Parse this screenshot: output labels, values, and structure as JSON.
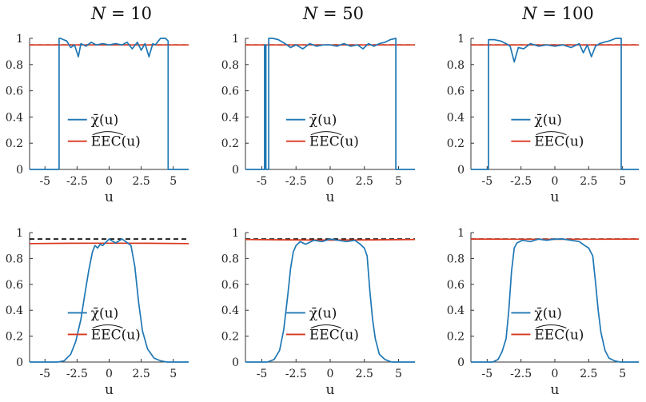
{
  "titles": [
    "N = 10",
    "N = 50",
    "N = 100"
  ],
  "colors": {
    "chi": "#1f77b4",
    "eec": "#d9381e",
    "nominal": "#000000"
  },
  "chart_data": [
    {
      "type": "line",
      "title": "N = 10",
      "row": 1,
      "xlabel": "u",
      "xlim": [
        -6.2,
        6.2
      ],
      "ylim": [
        0,
        1
      ],
      "xticks": [
        -5,
        -2.5,
        0,
        2.5,
        5
      ],
      "xticklabels": [
        "-5",
        "-2.5",
        "0",
        "2.5",
        "5"
      ],
      "yticks": [
        0,
        0.2,
        0.4,
        0.6,
        0.8,
        1
      ],
      "yticklabels": [
        "0",
        "0.2",
        "0.4",
        "0.6",
        "0.8",
        "1"
      ],
      "nominal": 0.95,
      "series": [
        {
          "name": "χ̄(u)",
          "x": [
            -6.2,
            -3.9,
            -3.9,
            -3.8,
            -3.8,
            -3.3,
            -3.0,
            -2.7,
            -2.4,
            -2.2,
            -1.8,
            -1.4,
            -1.0,
            -0.5,
            0,
            0.5,
            1.0,
            1.4,
            1.8,
            2.2,
            2.5,
            2.8,
            3.1,
            3.4,
            3.6,
            4.0,
            4.4,
            4.6,
            4.6,
            6.2
          ],
          "y": [
            0,
            0,
            1.0,
            1.0,
            1.0,
            0.98,
            0.93,
            0.95,
            0.86,
            0.96,
            0.94,
            0.97,
            0.95,
            0.96,
            0.95,
            0.96,
            0.95,
            0.97,
            0.92,
            0.97,
            0.91,
            0.96,
            0.86,
            0.96,
            0.95,
            1.0,
            1.0,
            0.98,
            0,
            0
          ]
        },
        {
          "name": "EEC(u)",
          "x": [
            -6.2,
            6.2
          ],
          "y": [
            0.95,
            0.95
          ]
        }
      ]
    },
    {
      "type": "line",
      "title": "N = 50",
      "row": 1,
      "xlabel": "u",
      "xlim": [
        -6.2,
        6.2
      ],
      "ylim": [
        0,
        1
      ],
      "xticks": [
        -5,
        -2.5,
        0,
        2.5,
        5
      ],
      "xticklabels": [
        "-5",
        "-2.5",
        "0",
        "2.5",
        "5"
      ],
      "yticks": [
        0,
        0.2,
        0.4,
        0.6,
        0.8,
        1
      ],
      "yticklabels": [
        "0",
        "0.2",
        "0.4",
        "0.6",
        "0.8",
        "1"
      ],
      "nominal": 0.95,
      "series": [
        {
          "name": "χ̄(u)",
          "x": [
            -6.2,
            -4.8,
            -4.8,
            -4.7,
            -4.7,
            -4.5,
            -4.5,
            -4.2,
            -3.8,
            -3.3,
            -2.9,
            -2.5,
            -2.0,
            -1.5,
            -1.0,
            -0.5,
            0,
            0.5,
            1.0,
            1.5,
            2.0,
            2.4,
            2.8,
            3.2,
            3.6,
            4.0,
            4.4,
            4.8,
            4.8,
            6.2
          ],
          "y": [
            0,
            0,
            0.95,
            0.95,
            0,
            0,
            1.0,
            1.0,
            0.99,
            0.96,
            0.93,
            0.95,
            0.92,
            0.96,
            0.94,
            0.95,
            0.95,
            0.94,
            0.96,
            0.94,
            0.95,
            0.92,
            0.96,
            0.94,
            0.96,
            0.97,
            0.99,
            1.0,
            0,
            0
          ]
        },
        {
          "name": "EEC(u)",
          "x": [
            -6.2,
            6.2
          ],
          "y": [
            0.95,
            0.95
          ]
        }
      ]
    },
    {
      "type": "line",
      "title": "N = 100",
      "row": 1,
      "xlabel": "u",
      "xlim": [
        -6.2,
        6.2
      ],
      "ylim": [
        0,
        1
      ],
      "xticks": [
        -5,
        -2.5,
        0,
        2.5,
        5
      ],
      "xticklabels": [
        "-5",
        "-2.5",
        "0",
        "2.5",
        "5"
      ],
      "yticks": [
        0,
        0.2,
        0.4,
        0.6,
        0.8,
        1
      ],
      "yticklabels": [
        "0",
        "0.2",
        "0.4",
        "0.6",
        "0.8",
        "1"
      ],
      "nominal": 0.95,
      "series": [
        {
          "name": "χ̄(u)",
          "x": [
            -6.2,
            -4.9,
            -4.9,
            -4.5,
            -4.0,
            -3.6,
            -3.3,
            -3.0,
            -2.7,
            -2.3,
            -1.8,
            -1.2,
            -0.6,
            0,
            0.6,
            1.2,
            1.8,
            2.1,
            2.4,
            2.7,
            3.0,
            3.3,
            3.6,
            4.0,
            4.5,
            4.9,
            4.9,
            6.2
          ],
          "y": [
            0,
            0,
            0.99,
            0.99,
            0.98,
            0.96,
            0.94,
            0.82,
            0.93,
            0.92,
            0.96,
            0.94,
            0.95,
            0.94,
            0.95,
            0.93,
            0.96,
            0.89,
            0.95,
            0.86,
            0.94,
            0.96,
            0.97,
            0.98,
            1.0,
            1.0,
            0,
            0
          ]
        },
        {
          "name": "EEC(u)",
          "x": [
            -6.2,
            6.2
          ],
          "y": [
            0.95,
            0.95
          ]
        }
      ]
    },
    {
      "type": "line",
      "title": "",
      "row": 2,
      "xlabel": "u",
      "xlim": [
        -6.2,
        6.2
      ],
      "ylim": [
        0,
        1
      ],
      "xticks": [
        -5,
        -2.5,
        0,
        2.5,
        5
      ],
      "xticklabels": [
        "-5",
        "-2.5",
        "0",
        "2.5",
        "5"
      ],
      "yticks": [
        0,
        0.2,
        0.4,
        0.6,
        0.8,
        1
      ],
      "yticklabels": [
        "0",
        "0.2",
        "0.4",
        "0.6",
        "0.8",
        "1"
      ],
      "nominal": 0.95,
      "series": [
        {
          "name": "χ̄(u)",
          "x": [
            -6.2,
            -4.0,
            -3.5,
            -3.0,
            -2.6,
            -2.2,
            -1.9,
            -1.6,
            -1.3,
            -1.1,
            -0.9,
            -0.7,
            -0.5,
            0,
            0.5,
            1.0,
            1.3,
            1.7,
            2.0,
            2.3,
            2.6,
            3.0,
            3.5,
            4.0,
            4.5,
            6.2
          ],
          "y": [
            0,
            0,
            0.01,
            0.06,
            0.16,
            0.33,
            0.52,
            0.7,
            0.85,
            0.9,
            0.88,
            0.91,
            0.9,
            0.95,
            0.92,
            0.95,
            0.93,
            0.9,
            0.74,
            0.46,
            0.24,
            0.1,
            0.03,
            0.01,
            0,
            0
          ]
        },
        {
          "name": "EEC(u)",
          "x": [
            -6.2,
            -3,
            0,
            3,
            6.2
          ],
          "y": [
            0.915,
            0.917,
            0.918,
            0.917,
            0.915
          ]
        }
      ]
    },
    {
      "type": "line",
      "title": "",
      "row": 2,
      "xlabel": "u",
      "xlim": [
        -6.2,
        6.2
      ],
      "ylim": [
        0,
        1
      ],
      "xticks": [
        -5,
        -2.5,
        0,
        2.5,
        5
      ],
      "xticklabels": [
        "-5",
        "-2.5",
        "0",
        "2.5",
        "5"
      ],
      "yticks": [
        0,
        0.2,
        0.4,
        0.6,
        0.8,
        1
      ],
      "yticklabels": [
        "0",
        "0.2",
        "0.4",
        "0.6",
        "0.8",
        "1"
      ],
      "nominal": 0.95,
      "series": [
        {
          "name": "χ̄(u)",
          "x": [
            -6.2,
            -4.6,
            -4.1,
            -3.7,
            -3.4,
            -3.1,
            -2.9,
            -2.7,
            -2.5,
            -2.2,
            -1.8,
            -1.2,
            -0.6,
            0,
            0.6,
            1.2,
            1.8,
            2.2,
            2.5,
            2.7,
            2.9,
            3.1,
            3.3,
            3.6,
            4.0,
            4.5,
            6.2
          ],
          "y": [
            0,
            0,
            0.02,
            0.09,
            0.25,
            0.52,
            0.72,
            0.85,
            0.9,
            0.93,
            0.91,
            0.94,
            0.93,
            0.95,
            0.94,
            0.93,
            0.94,
            0.91,
            0.88,
            0.82,
            0.55,
            0.33,
            0.18,
            0.06,
            0.02,
            0,
            0
          ]
        },
        {
          "name": "EEC(u)",
          "x": [
            -6.2,
            -3,
            0,
            3,
            6.2
          ],
          "y": [
            0.946,
            0.944,
            0.942,
            0.944,
            0.946
          ]
        }
      ]
    },
    {
      "type": "line",
      "title": "",
      "row": 2,
      "xlabel": "u",
      "xlim": [
        -6.2,
        6.2
      ],
      "ylim": [
        0,
        1
      ],
      "xticks": [
        -5,
        -2.5,
        0,
        2.5,
        5
      ],
      "xticklabels": [
        "-5",
        "-2.5",
        "0",
        "2.5",
        "5"
      ],
      "yticks": [
        0,
        0.2,
        0.4,
        0.6,
        0.8,
        1
      ],
      "yticklabels": [
        "0",
        "0.2",
        "0.4",
        "0.6",
        "0.8",
        "1"
      ],
      "nominal": 0.95,
      "series": [
        {
          "name": "χ̄(u)",
          "x": [
            -6.2,
            -4.6,
            -4.2,
            -3.9,
            -3.6,
            -3.4,
            -3.2,
            -3.0,
            -2.8,
            -2.4,
            -1.8,
            -1.2,
            -0.6,
            0,
            0.6,
            1.2,
            1.8,
            2.2,
            2.5,
            2.8,
            3.0,
            3.2,
            3.4,
            3.7,
            4.0,
            4.4,
            4.8,
            6.2
          ],
          "y": [
            0,
            0,
            0.02,
            0.08,
            0.18,
            0.4,
            0.7,
            0.88,
            0.92,
            0.94,
            0.93,
            0.95,
            0.94,
            0.95,
            0.95,
            0.94,
            0.93,
            0.9,
            0.88,
            0.82,
            0.62,
            0.4,
            0.23,
            0.09,
            0.03,
            0.01,
            0,
            0
          ]
        },
        {
          "name": "EEC(u)",
          "x": [
            -6.2,
            -3,
            0,
            3,
            6.2
          ],
          "y": [
            0.95,
            0.949,
            0.948,
            0.949,
            0.95
          ]
        }
      ]
    }
  ]
}
